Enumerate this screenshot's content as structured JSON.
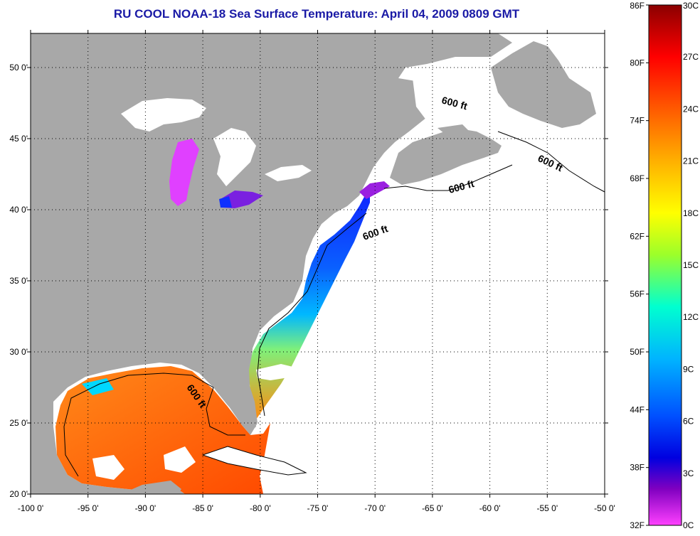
{
  "title": "RU COOL  NOAA-18  Sea Surface Temperature:  April 04, 2009 0809 GMT",
  "map": {
    "lon_ticks": [
      "-100 0'",
      "-95 0'",
      "-90 0'",
      "-85 0'",
      "-80 0'",
      "-75 0'",
      "-70 0'",
      "-65 0'",
      "-60 0'",
      "-55 0'",
      "-50 0'"
    ],
    "lat_ticks": [
      "50 0'",
      "45 0'",
      "40 0'",
      "35 0'",
      "30 0'",
      "25 0'",
      "20 0'"
    ],
    "contour_labels": [
      "600 ft",
      "600 ft",
      "600 ft",
      "600 ft",
      "600 ft"
    ],
    "land_color": "#a8a8a8",
    "ocean_color": "#ffffff"
  },
  "colorbar": {
    "fahrenheit_labels": [
      "86F",
      "80F",
      "74F",
      "68F",
      "62F",
      "56F",
      "50F",
      "44F",
      "38F",
      "32F"
    ],
    "celsius_labels": [
      "30C",
      "27C",
      "24C",
      "21C",
      "18C",
      "15C",
      "12C",
      "9C",
      "6C",
      "3C",
      "0C"
    ],
    "colors": [
      "#8b0000",
      "#ff0000",
      "#ff6a00",
      "#ffb000",
      "#ffff00",
      "#9cff2a",
      "#00ffd0",
      "#00b4ff",
      "#0050ff",
      "#0000e0",
      "#8000c0",
      "#ff40ff"
    ]
  }
}
